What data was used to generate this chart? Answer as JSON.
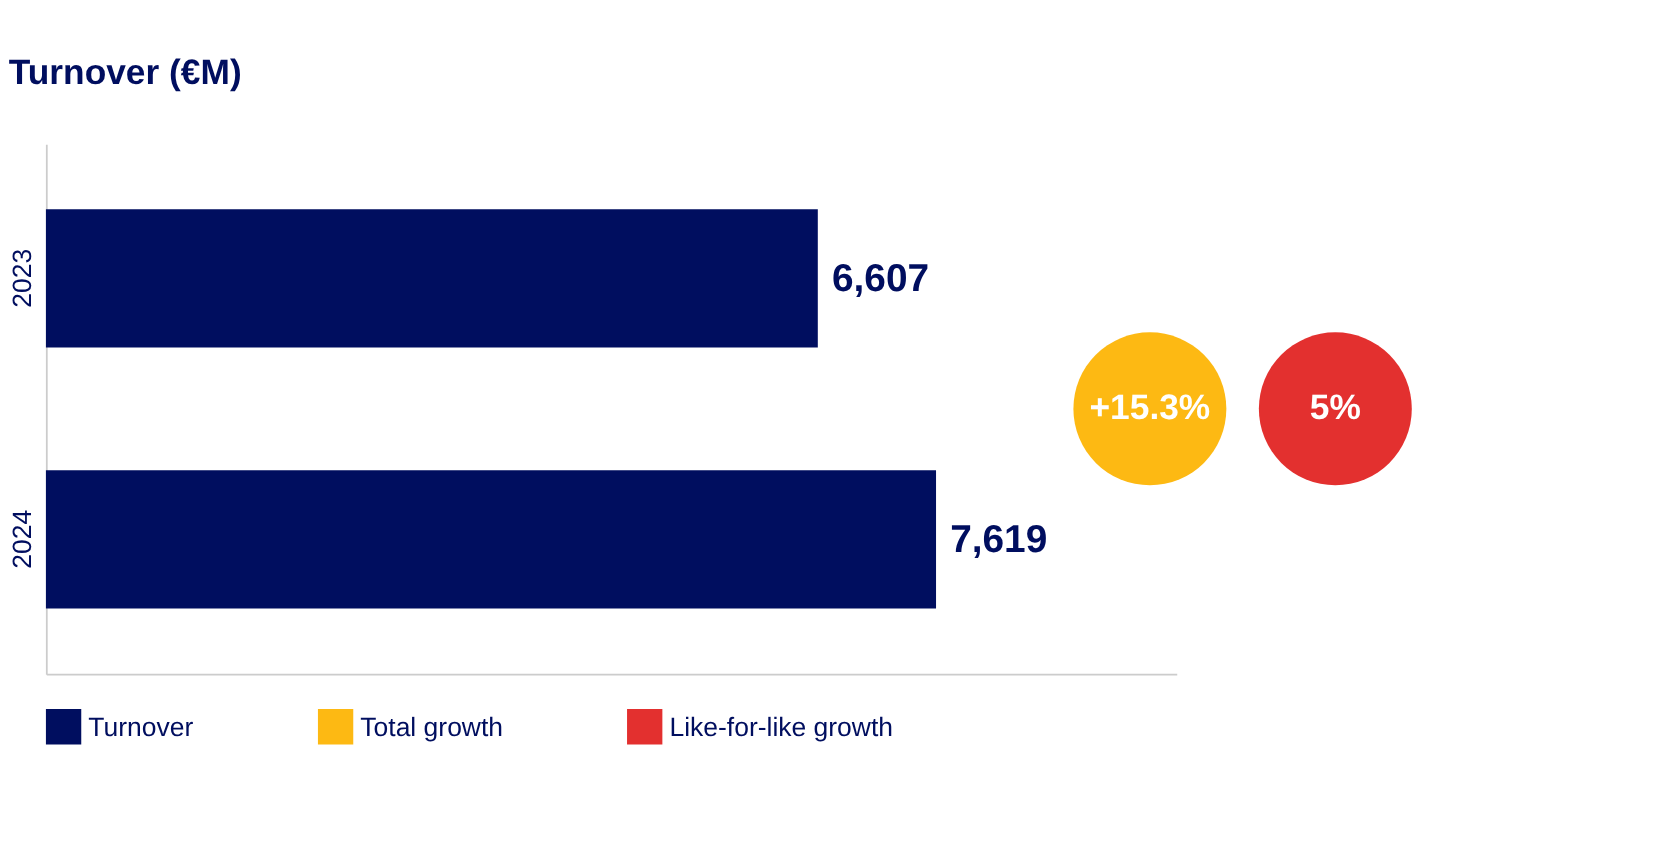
{
  "chart_data": {
    "type": "bar",
    "orientation": "horizontal",
    "title": "Turnover (€M)",
    "categories": [
      "2023",
      "2024"
    ],
    "series": [
      {
        "name": "Turnover",
        "color": "#000e5f",
        "values": [
          6607,
          7619
        ],
        "value_labels": [
          "6,607",
          "7,619"
        ]
      },
      {
        "name": "Total growth",
        "color": "#fdb913",
        "values": [
          null,
          null
        ]
      },
      {
        "name": "Like-for-like growth",
        "color": "#e3302f",
        "values": [
          null,
          null
        ]
      }
    ],
    "annotations": [
      "+15.3%",
      "5%"
    ],
    "grid": false,
    "legend": "bottom",
    "tick_labels": "y"
  }
}
